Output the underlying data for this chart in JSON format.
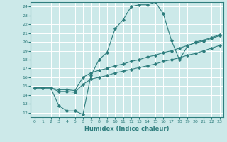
{
  "background_color": "#cce9e9",
  "grid_color": "#ffffff",
  "line_color": "#2e7d7d",
  "xlabel": "Humidex (Indice chaleur)",
  "xlim": [
    -0.5,
    23.5
  ],
  "ylim": [
    11.5,
    24.5
  ],
  "yticks": [
    12,
    13,
    14,
    15,
    16,
    17,
    18,
    19,
    20,
    21,
    22,
    23,
    24
  ],
  "xticks": [
    0,
    1,
    2,
    3,
    4,
    5,
    6,
    7,
    8,
    9,
    10,
    11,
    12,
    13,
    14,
    15,
    16,
    17,
    18,
    19,
    20,
    21,
    22,
    23
  ],
  "series": [
    {
      "x": [
        0,
        1,
        2,
        3,
        4,
        5,
        6,
        7,
        8,
        9,
        10,
        11,
        12,
        13,
        14,
        15,
        16,
        17,
        18,
        19,
        20,
        21,
        22,
        23
      ],
      "y": [
        14.8,
        14.8,
        14.8,
        12.8,
        12.2,
        12.2,
        11.8,
        16.2,
        18.0,
        18.8,
        21.5,
        22.5,
        24.0,
        24.2,
        24.2,
        24.5,
        23.2,
        20.2,
        18.0,
        19.5,
        20.0,
        20.2,
        20.5,
        20.8
      ]
    },
    {
      "x": [
        0,
        1,
        2,
        3,
        4,
        5,
        6,
        7,
        8,
        9,
        10,
        11,
        12,
        13,
        14,
        15,
        16,
        17,
        18,
        19,
        20,
        21,
        22,
        23
      ],
      "y": [
        14.8,
        14.8,
        14.8,
        14.6,
        14.6,
        14.5,
        16.0,
        16.5,
        16.8,
        17.0,
        17.3,
        17.5,
        17.8,
        18.0,
        18.3,
        18.5,
        18.8,
        19.0,
        19.3,
        19.6,
        19.9,
        20.1,
        20.4,
        20.7
      ]
    },
    {
      "x": [
        0,
        1,
        2,
        3,
        4,
        5,
        6,
        7,
        8,
        9,
        10,
        11,
        12,
        13,
        14,
        15,
        16,
        17,
        18,
        19,
        20,
        21,
        22,
        23
      ],
      "y": [
        14.8,
        14.8,
        14.8,
        14.4,
        14.4,
        14.3,
        15.2,
        15.8,
        16.0,
        16.2,
        16.5,
        16.7,
        16.9,
        17.1,
        17.3,
        17.5,
        17.8,
        18.0,
        18.2,
        18.5,
        18.7,
        19.0,
        19.3,
        19.6
      ]
    }
  ]
}
